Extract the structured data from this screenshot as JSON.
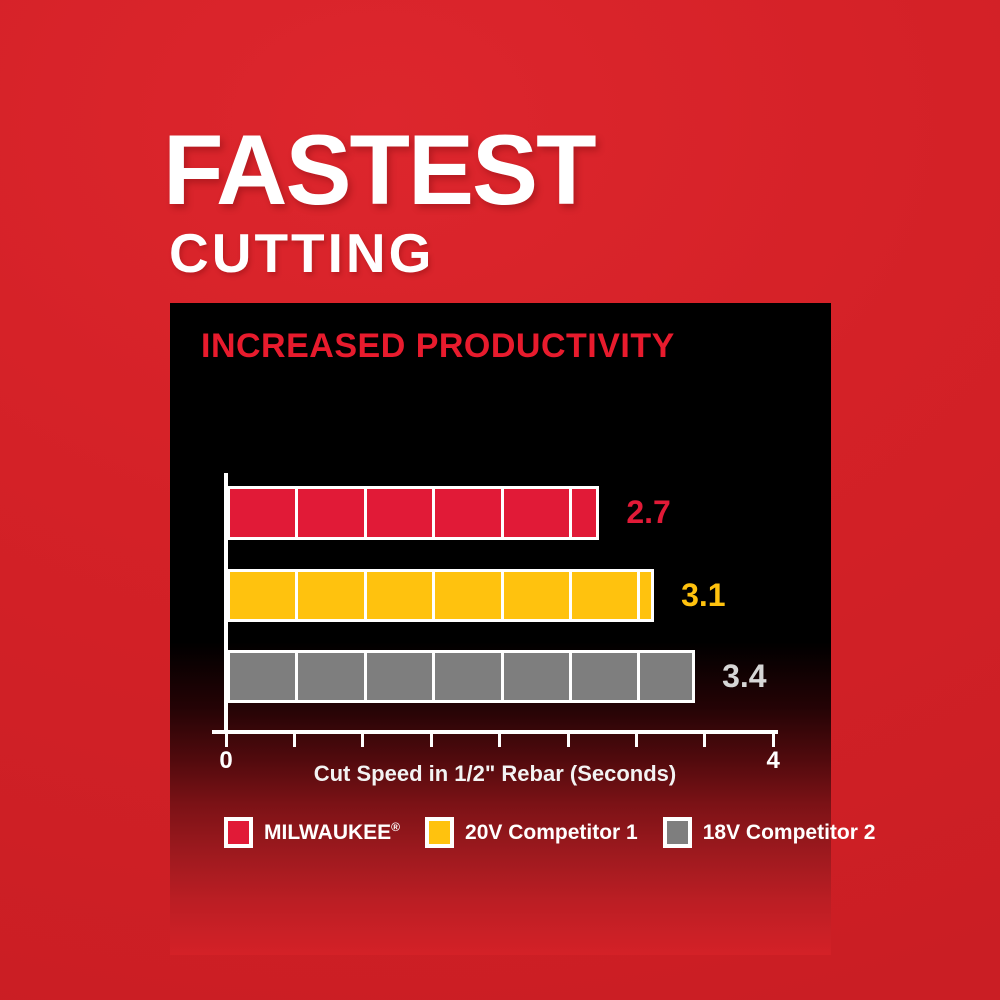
{
  "header": {
    "line1": "FASTEST",
    "line2": "CUTTING"
  },
  "chart_data": {
    "type": "bar",
    "orientation": "horizontal",
    "title": "INCREASED PRODUCTIVITY",
    "xlabel": "Cut Speed in 1/2\" Rebar (Seconds)",
    "xlim": [
      0,
      4
    ],
    "xticks": [
      0,
      0.5,
      1,
      1.5,
      2,
      2.5,
      3,
      3.5,
      4
    ],
    "xtick_label_first": "0",
    "xtick_label_last": "4",
    "segment_interval": 0.5,
    "grid": false,
    "legend_position": "bottom",
    "series": [
      {
        "name": "MILWAUKEE®",
        "value": 2.7,
        "value_label": "2.7",
        "bar_color": "#e11a37",
        "value_color": "#e11a37"
      },
      {
        "name": "20V Competitor 1",
        "value": 3.1,
        "value_label": "3.1",
        "bar_color": "#ffc20e",
        "value_color": "#ffc20e"
      },
      {
        "name": "18V Competitor 2",
        "value": 3.4,
        "value_label": "3.4",
        "bar_color": "#7e7e7e",
        "value_color": "#d6d6d6"
      }
    ]
  },
  "colors": {
    "background_red": "#d42127",
    "panel_black": "#000000",
    "title_red": "#e81b2d",
    "axis_white": "#ffffff"
  }
}
